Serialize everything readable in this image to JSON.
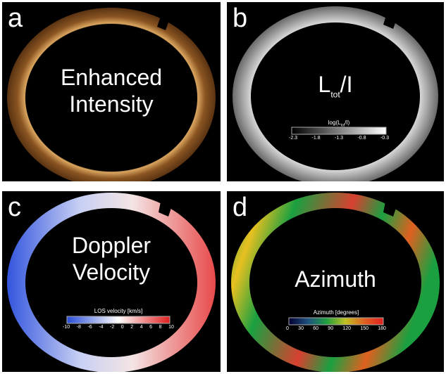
{
  "panels": [
    {
      "letter": "a",
      "title_lines": [
        "Enhanced",
        "Intensity"
      ]
    },
    {
      "letter": "b",
      "title_main": "L",
      "title_sub": "tot",
      "title_tail": "/I",
      "colorbar": {
        "label": "log(L",
        "label_sub": "tot",
        "label_tail": "/I)",
        "ticks": [
          "-2.3",
          "-1.8",
          "-1.3",
          "-0.8",
          "-0.3"
        ]
      }
    },
    {
      "letter": "c",
      "title_lines": [
        "Doppler",
        "Velocity"
      ],
      "colorbar": {
        "label": "LOS velocity [km/s]",
        "ticks": [
          "-10",
          "-8",
          "-6",
          "-4",
          "-2",
          "0",
          "2",
          "4",
          "6",
          "8",
          "10"
        ]
      }
    },
    {
      "letter": "d",
      "title_lines": [
        "Azimuth"
      ],
      "colorbar": {
        "label": "Azimuth [degrees]",
        "ticks": [
          "0",
          "30",
          "60",
          "90",
          "120",
          "150",
          "180"
        ]
      }
    }
  ],
  "colors": {
    "intensity": "#b87a3a",
    "velocity_neg": "#2a4dd8",
    "velocity_pos": "#e02020",
    "azimuth_green": "#1aa040"
  }
}
